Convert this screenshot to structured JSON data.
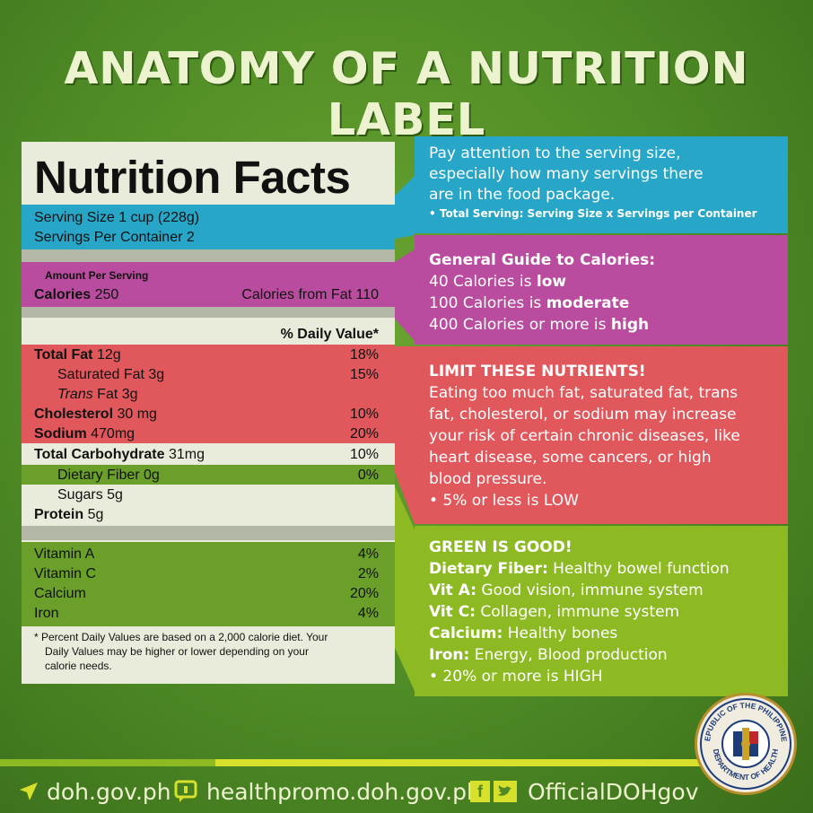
{
  "header": {
    "title": "ANATOMY OF A NUTRITION LABEL"
  },
  "label": {
    "heading": "Nutrition Facts",
    "serving_size": "Serving Size 1 cup (228g)",
    "servings_per_container": "Servings Per Container 2",
    "amount_per_serving": "Amount Per Serving",
    "calories_label": "Calories",
    "calories_value": "250",
    "calories_from_fat": "Calories from Fat 110",
    "daily_value_header": "% Daily Value*",
    "nutrients": [
      {
        "name": "Total Fat",
        "amount": "12g",
        "dv": "18%"
      },
      {
        "name": "Saturated Fat 3g",
        "dv": "15%"
      },
      {
        "name_italic": "Trans",
        "name_rest": " Fat 3g"
      },
      {
        "name": "Cholesterol",
        "amount": "30 mg",
        "dv": "10%"
      },
      {
        "name": "Sodium",
        "amount": "470mg",
        "dv": "20%"
      },
      {
        "name": "Total Carbohydrate",
        "amount": "31mg",
        "dv": "10%"
      },
      {
        "name": "Dietary Fiber 0g",
        "dv": "0%"
      },
      {
        "name": "Sugars 5g"
      },
      {
        "name": "Protein",
        "amount": "5g"
      }
    ],
    "vitamins": [
      {
        "name": "Vitamin A",
        "dv": "4%"
      },
      {
        "name": "Vitamin C",
        "dv": "2%"
      },
      {
        "name": "Calcium",
        "dv": "20%"
      },
      {
        "name": "Iron",
        "dv": "4%"
      }
    ],
    "footnote_line1": "* Percent Daily Values are based on a 2,000 calorie diet. Your",
    "footnote_line2": "Daily Values may be higher or lower depending on your",
    "footnote_line3": "calorie needs."
  },
  "panels": {
    "serving": {
      "line1": "Pay attention to the serving size,",
      "line2": "especially how many servings there",
      "line3": "are in the food package.",
      "note": "• Total Serving: Serving Size x Servings per Container"
    },
    "calories": {
      "heading": "General Guide to Calories:",
      "l1_pre": "40 Calories is ",
      "l1_bold": "low",
      "l2_pre": "100 Calories is ",
      "l2_bold": "moderate",
      "l3_pre": "400 Calories or more is ",
      "l3_bold": "high"
    },
    "limit": {
      "heading": "LIMIT THESE NUTRIENTS!",
      "line1": "Eating too much fat, saturated fat, trans",
      "line2": "fat, cholesterol, or sodium may increase",
      "line3": "your risk of certain chronic diseases, like",
      "line4": "heart disease, some cancers, or high",
      "line5": "blood pressure.",
      "note": "• 5% or less is LOW"
    },
    "green": {
      "heading": "GREEN IS GOOD!",
      "items": [
        {
          "k": "Dietary Fiber:",
          "v": " Healthy bowel function"
        },
        {
          "k": "Vit A:",
          "v": " Good vision, immune system"
        },
        {
          "k": "Vit C:",
          "v": " Collagen, immune system"
        },
        {
          "k": "Calcium:",
          "v": " Healthy bones"
        },
        {
          "k": "Iron:",
          "v": " Energy, Blood production"
        }
      ],
      "note": "• 20% or more is HIGH"
    }
  },
  "footer": {
    "site": "doh.gov.ph",
    "healthpromo": "healthpromo.doh.gov.ph",
    "social": "OfficialDOHgov",
    "fb_glyph": "f"
  },
  "seal": {
    "top_text": "REPUBLIC OF THE PHILIPPINES",
    "bottom_text": "DEPARTMENT OF HEALTH"
  },
  "colors": {
    "background": "#4f8a25",
    "blue": "#27a6c8",
    "purple": "#b94c9e",
    "red": "#e0575c",
    "green": "#8dba23"
  }
}
